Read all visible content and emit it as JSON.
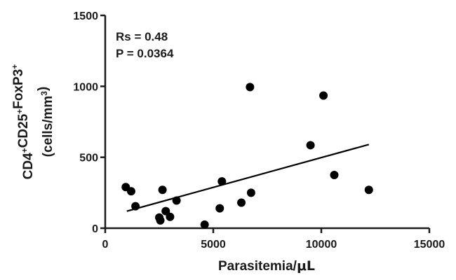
{
  "chart_data": {
    "type": "scatter",
    "title": "",
    "xlabel_parts": {
      "main": "Parasitemia/",
      "unit": "μL"
    },
    "ylabel_line1": [
      {
        "t": "CD4",
        "sup": false
      },
      {
        "t": "+",
        "sup": true
      },
      {
        "t": "CD25",
        "sup": false
      },
      {
        "t": "+",
        "sup": true
      },
      {
        "t": "FoxP3",
        "sup": false
      },
      {
        "t": "+",
        "sup": true
      }
    ],
    "ylabel_line2": [
      {
        "t": "(cells/mm",
        "sup": false
      },
      {
        "t": "3",
        "sup": true
      },
      {
        "t": ")",
        "sup": false
      }
    ],
    "xlim": [
      0,
      15000
    ],
    "ylim": [
      0,
      1500
    ],
    "xticks": [
      0,
      5000,
      10000,
      15000
    ],
    "yticks": [
      0,
      500,
      1000,
      1500
    ],
    "annotations": [
      "Rs = 0.48",
      "P = 0.0364"
    ],
    "points": [
      {
        "x": 950,
        "y": 290
      },
      {
        "x": 1200,
        "y": 260
      },
      {
        "x": 1400,
        "y": 155
      },
      {
        "x": 2500,
        "y": 75
      },
      {
        "x": 2550,
        "y": 55
      },
      {
        "x": 2650,
        "y": 270
      },
      {
        "x": 2800,
        "y": 120
      },
      {
        "x": 3000,
        "y": 80
      },
      {
        "x": 3300,
        "y": 195
      },
      {
        "x": 4600,
        "y": 25
      },
      {
        "x": 5300,
        "y": 140
      },
      {
        "x": 5400,
        "y": 330
      },
      {
        "x": 6300,
        "y": 180
      },
      {
        "x": 6700,
        "y": 995
      },
      {
        "x": 6750,
        "y": 250
      },
      {
        "x": 9500,
        "y": 585
      },
      {
        "x": 10100,
        "y": 935
      },
      {
        "x": 10600,
        "y": 375
      },
      {
        "x": 12200,
        "y": 270
      }
    ],
    "trendline": {
      "x": [
        1000,
        12200
      ],
      "y": [
        120,
        590
      ]
    },
    "grid": false,
    "legend": "none",
    "colors": {
      "marker": "#000000",
      "line": "#000000",
      "axis": "#1a1a1a"
    }
  }
}
